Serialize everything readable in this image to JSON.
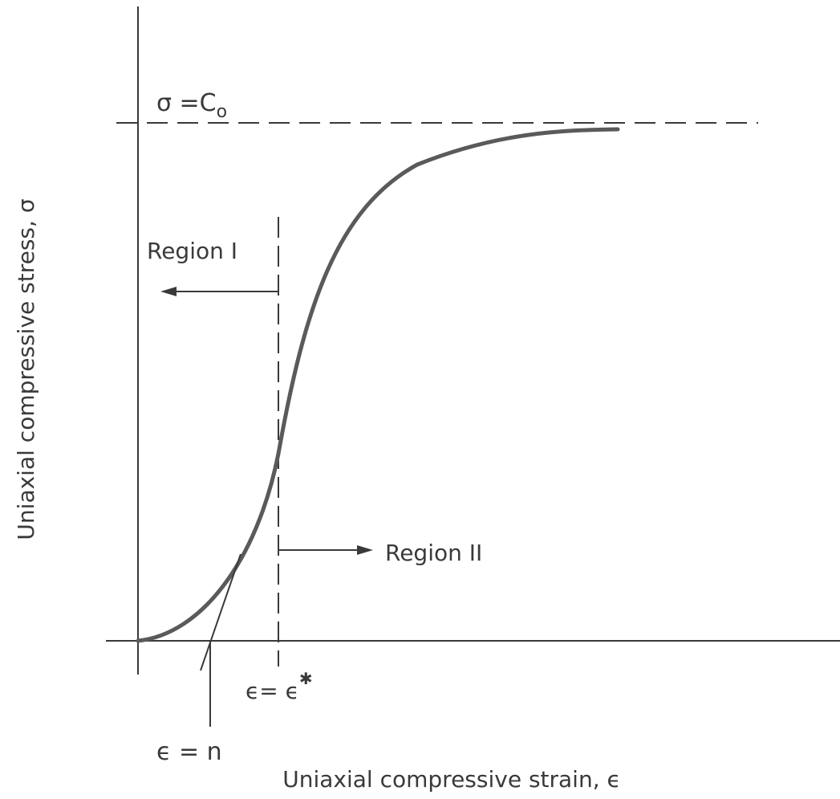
{
  "labels": {
    "limit_label": "σ =C",
    "limit_sub": "o",
    "region1": "Region I",
    "region2": "Region II",
    "eps_star": "ϵ= ϵ",
    "eps_star_sup": "✱",
    "eps_n": "ϵ = n",
    "x_axis": "Uniaxial compressive strain, ϵ",
    "y_axis": "Uniaxial compressive stress, σ"
  },
  "colors": {
    "ink": "#3a3a3a",
    "curve": "#5a5a5a"
  }
}
